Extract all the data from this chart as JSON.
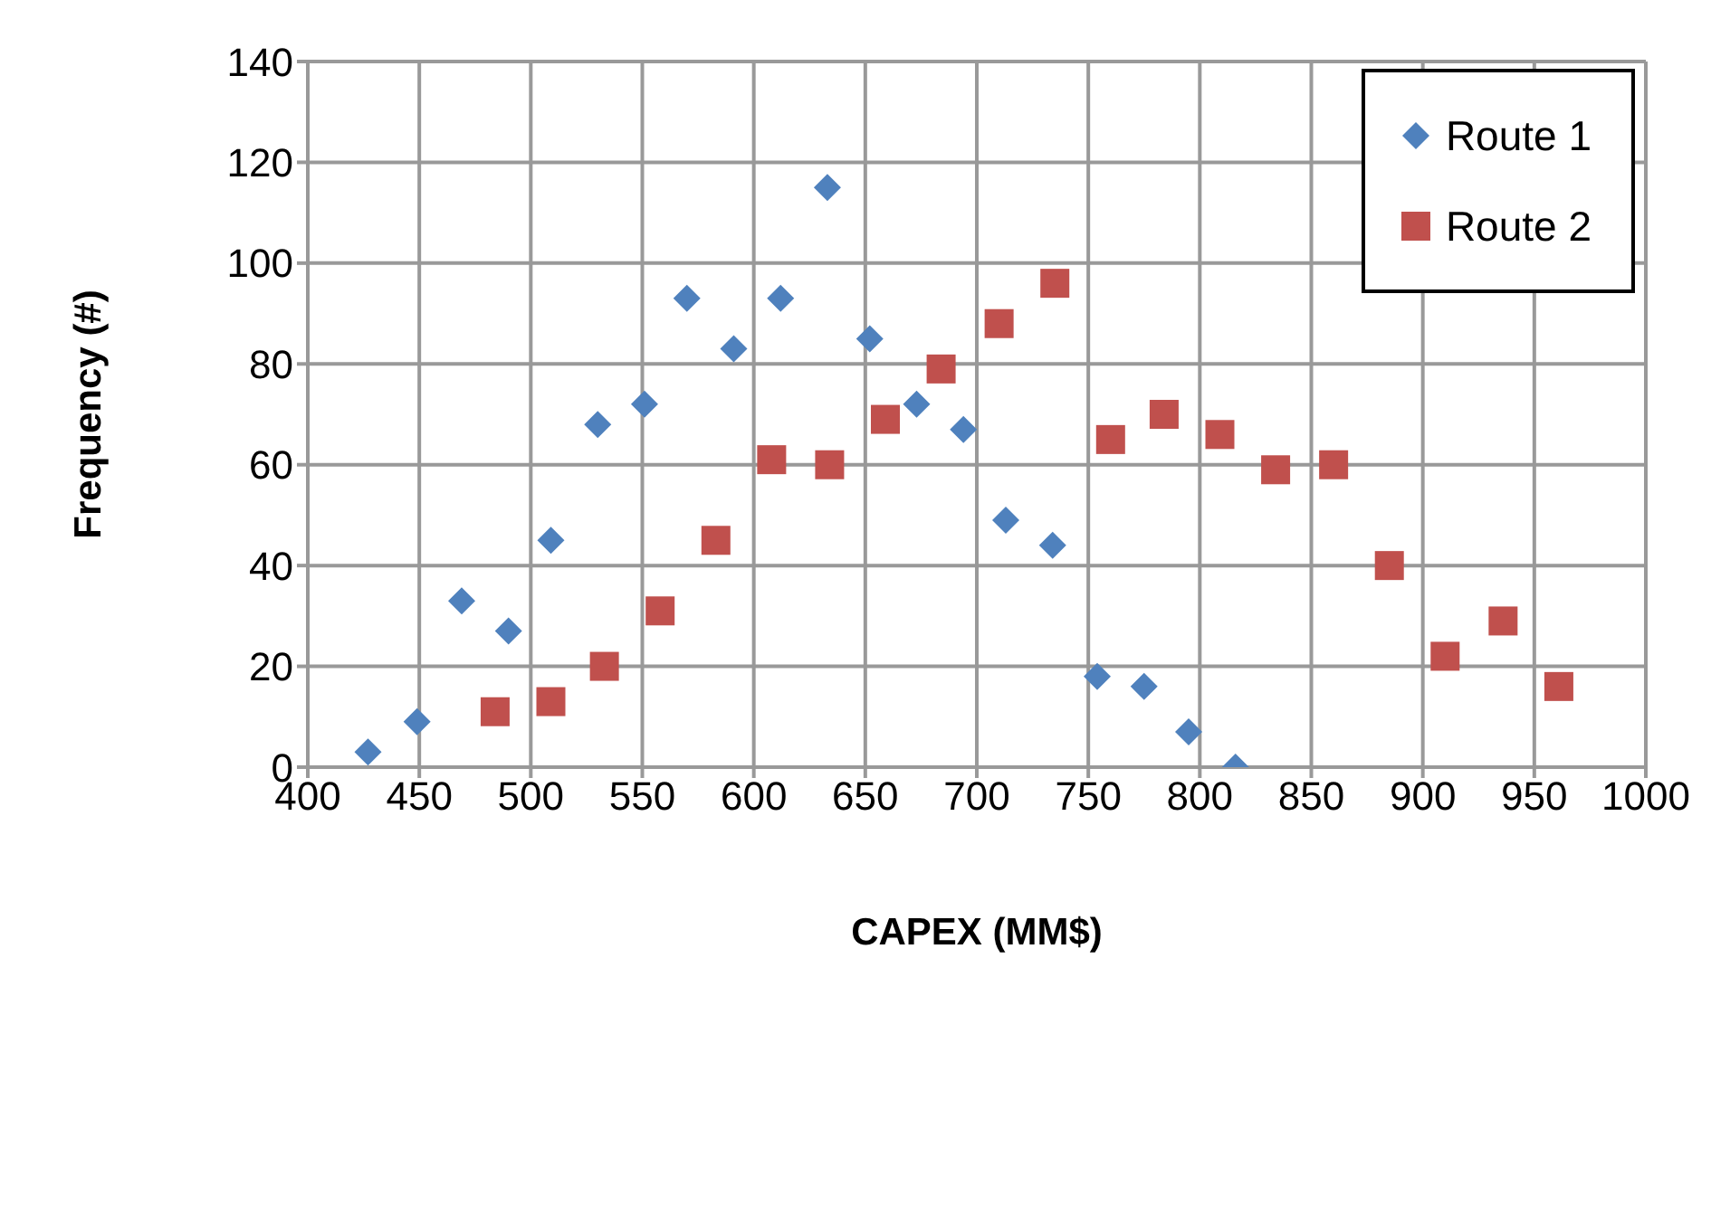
{
  "chart_data": {
    "type": "scatter",
    "xlabel": "CAPEX (MM$)",
    "ylabel": "Frequency (#)",
    "xlim": [
      400,
      1000
    ],
    "xticks": [
      400,
      450,
      500,
      550,
      600,
      650,
      700,
      750,
      800,
      850,
      900,
      950,
      1000
    ],
    "ylim": [
      0,
      140
    ],
    "yticks": [
      0,
      20,
      40,
      60,
      80,
      100,
      120,
      140
    ],
    "grid": true,
    "legend": "top right",
    "series": [
      {
        "name": "Route 1",
        "color": "#4f81bd",
        "marker": "diamond",
        "x": [
          427,
          449,
          469,
          490,
          509,
          530,
          551,
          570,
          591,
          612,
          633,
          652,
          673,
          694,
          713,
          734,
          754,
          775,
          795,
          816
        ],
        "values": [
          3,
          9,
          33,
          27,
          45,
          68,
          72,
          93,
          83,
          93,
          115,
          85,
          72,
          67,
          49,
          44,
          18,
          16,
          7,
          0
        ]
      },
      {
        "name": "Route 2",
        "color": "#c0504d",
        "marker": "square",
        "x": [
          484,
          509,
          533,
          558,
          583,
          608,
          634,
          659,
          684,
          710,
          735,
          760,
          784,
          809,
          834,
          860,
          885,
          910,
          936,
          961
        ],
        "values": [
          11,
          13,
          20,
          31,
          45,
          61,
          60,
          69,
          79,
          88,
          96,
          65,
          70,
          66,
          59,
          60,
          40,
          22,
          29,
          16
        ]
      }
    ]
  }
}
